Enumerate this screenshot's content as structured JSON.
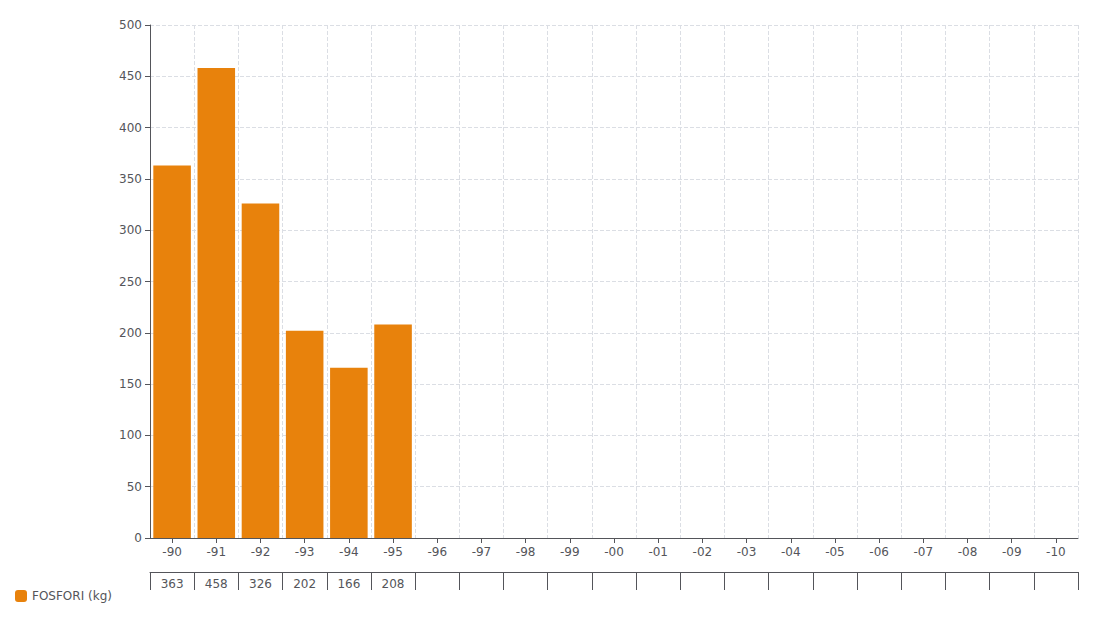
{
  "chart_data": {
    "type": "bar",
    "categories": [
      "-90",
      "-91",
      "-92",
      "-93",
      "-94",
      "-95",
      "-96",
      "-97",
      "-98",
      "-99",
      "-00",
      "-01",
      "-02",
      "-03",
      "-04",
      "-05",
      "-06",
      "-07",
      "-08",
      "-09",
      "-10"
    ],
    "series": [
      {
        "name": "FOSFORI (kg)",
        "color": "#E8820C",
        "values": [
          363,
          458,
          326,
          202,
          166,
          208,
          0,
          0,
          0,
          0,
          0,
          0,
          0,
          0,
          0,
          0,
          0,
          0,
          0,
          0,
          0
        ],
        "value_labels": [
          "363",
          "458",
          "326",
          "202",
          "166",
          "208",
          null,
          null,
          null,
          null,
          null,
          null,
          null,
          null,
          null,
          null,
          null,
          null,
          null,
          null,
          null
        ]
      }
    ],
    "ylim": [
      0,
      500
    ],
    "yticks": [
      0,
      50,
      100,
      150,
      200,
      250,
      300,
      350,
      400,
      450,
      500
    ],
    "grid": true,
    "legend": "lower left",
    "data_labels": true
  }
}
